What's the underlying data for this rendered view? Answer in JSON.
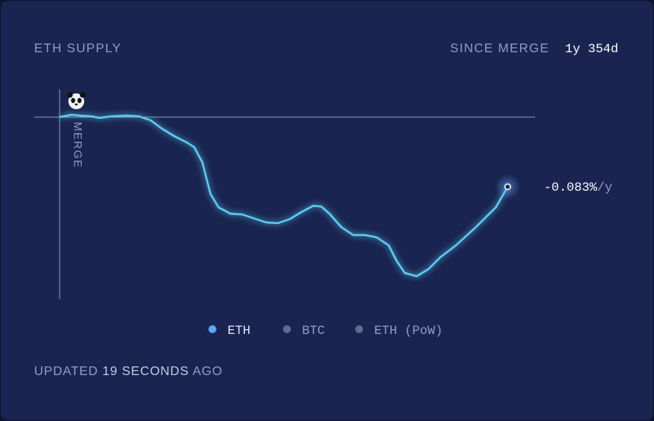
{
  "chart_data": {
    "type": "line",
    "title": "ETH SUPPLY",
    "period_label": "SINCE MERGE",
    "period": "1y 354d",
    "marker_label": "MERGE",
    "rate": "-0.083%",
    "rate_unit": "/y",
    "x": [
      0,
      19,
      32,
      51,
      64,
      83,
      108,
      127,
      146,
      165,
      184,
      204,
      216,
      229,
      242,
      255,
      274,
      293,
      312,
      331,
      350,
      369,
      388,
      407,
      420,
      433,
      452,
      471,
      490,
      509,
      528,
      541,
      554,
      573,
      592,
      611,
      636,
      668,
      700,
      719
    ],
    "series": [
      {
        "name": "ETH",
        "color": "#5ccbf0",
        "values": [
          0,
          0.3,
          0.2,
          0.1,
          -0.1,
          0.1,
          0.2,
          0.1,
          -0.4,
          -1.5,
          -2.4,
          -3.2,
          -3.8,
          -5.7,
          -9.7,
          -11.4,
          -12.2,
          -12.3,
          -12.8,
          -13.3,
          -13.4,
          -12.9,
          -12,
          -11.2,
          -11.3,
          -12.2,
          -13.9,
          -14.9,
          -14.9,
          -15.2,
          -16.2,
          -18.2,
          -19.7,
          -20.1,
          -19.2,
          -17.7,
          -16.2,
          -13.9,
          -11.4,
          -8.8
        ]
      }
    ],
    "legend": [
      {
        "name": "ETH",
        "color": "#5aa8ee"
      },
      {
        "name": "BTC",
        "color": "#5d6b8f"
      },
      {
        "name": "ETH (PoW)",
        "color": "#5d6b8f"
      }
    ],
    "xlim": [
      -41,
      763
    ],
    "ylim": [
      -23,
      4
    ],
    "footer": {
      "prefix": "UPDATED",
      "age": "19 SECONDS",
      "suffix": "AGO"
    }
  }
}
